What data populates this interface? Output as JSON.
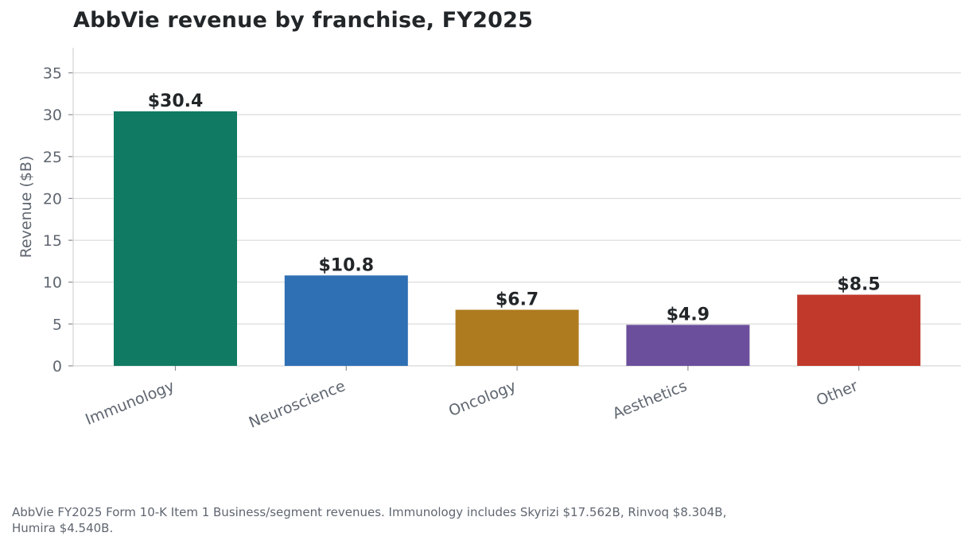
{
  "chart_data": {
    "type": "bar",
    "title": "AbbVie revenue by franchise, FY2025",
    "xlabel": "",
    "ylabel": "Revenue ($B)",
    "categories": [
      "Immunology",
      "Neuroscience",
      "Oncology",
      "Aesthetics",
      "Other"
    ],
    "values": [
      30.4,
      10.8,
      6.7,
      4.9,
      8.5
    ],
    "value_labels": [
      "$30.4",
      "$10.8",
      "$6.7",
      "$4.9",
      "$8.5"
    ],
    "colors": [
      "#117a62",
      "#2f6fb4",
      "#ae7b1f",
      "#6b4f9c",
      "#c0392b"
    ],
    "ylim": [
      0,
      38
    ],
    "yticks": [
      0,
      5,
      10,
      15,
      20,
      25,
      30,
      35
    ],
    "grid": true,
    "legend": "none"
  },
  "footnote": "AbbVie FY2025 Form 10-K Item 1 Business/segment revenues. Immunology includes Skyrizi $17.562B, Rinvoq $8.304B, Humira $4.540B."
}
